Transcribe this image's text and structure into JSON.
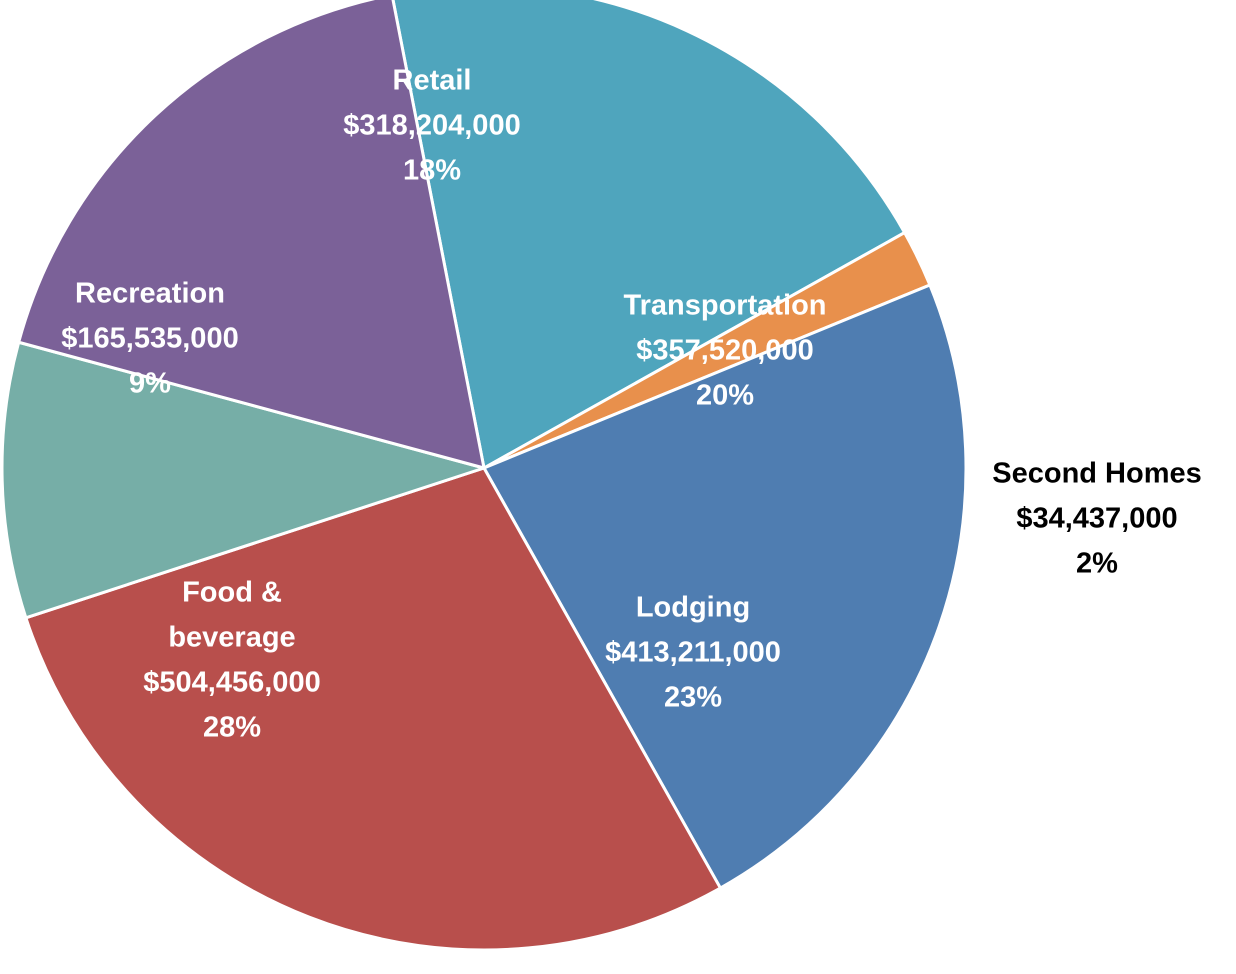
{
  "chart_data": {
    "type": "pie",
    "slices": [
      {
        "label": "Transportation",
        "value": 357520000,
        "value_label": "$357,520,000",
        "percent_label": "20%",
        "color": "#4fa5bd",
        "label_color": "#ffffff"
      },
      {
        "label": "Second Homes",
        "value": 34437000,
        "value_label": "$34,437,000",
        "percent_label": "2%",
        "color": "#e8904c",
        "label_color": "#000000"
      },
      {
        "label": "Lodging",
        "value": 413211000,
        "value_label": "$413,211,000",
        "percent_label": "23%",
        "color": "#4f7db1",
        "label_color": "#ffffff"
      },
      {
        "label": "Food &\nbeverage",
        "value": 504456000,
        "value_label": "$504,456,000",
        "percent_label": "28%",
        "color": "#b84f4c",
        "label_color": "#ffffff"
      },
      {
        "label": "Recreation",
        "value": 165535000,
        "value_label": "$165,535,000",
        "percent_label": "9%",
        "color": "#76aea7",
        "label_color": "#ffffff"
      },
      {
        "label": "Retail",
        "value": 318204000,
        "value_label": "$318,204,000",
        "percent_label": "18%",
        "color": "#7b6198",
        "label_color": "#ffffff"
      }
    ]
  }
}
